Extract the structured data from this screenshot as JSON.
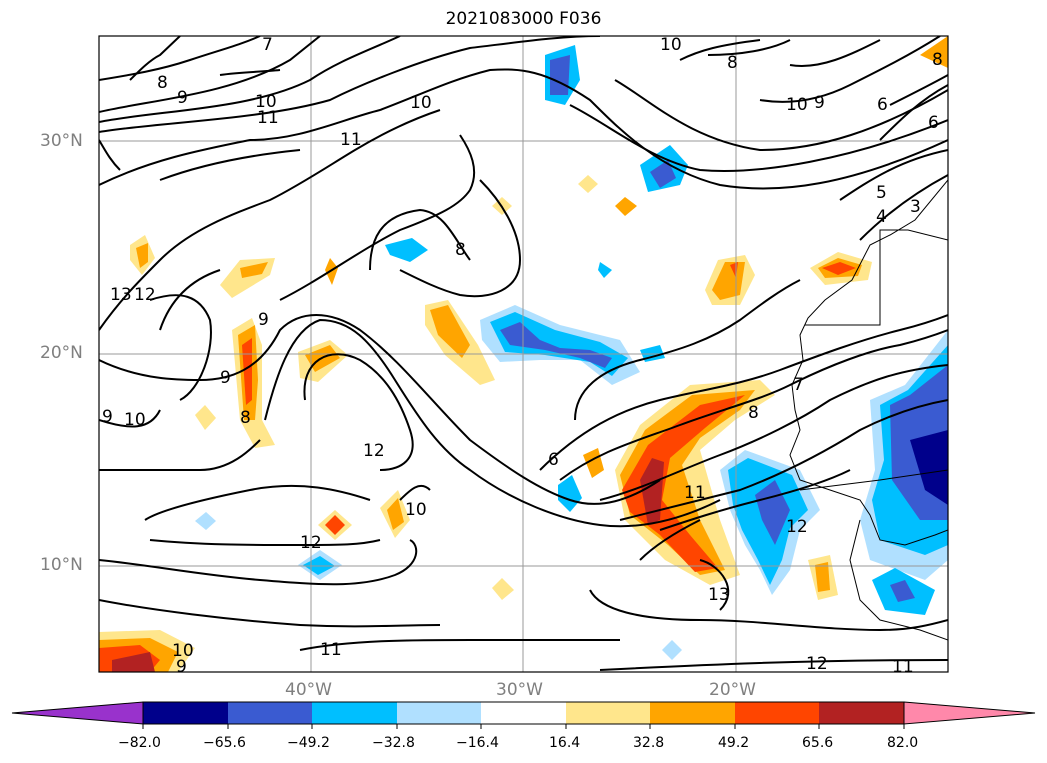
{
  "title": "2021083000 F036",
  "axes": {
    "lat_labels": [
      "30°N",
      "20°N",
      "10°N"
    ],
    "lon_labels": [
      "40°W",
      "30°W",
      "20°W"
    ]
  },
  "contour_labels": [
    "7",
    "8",
    "9",
    "10",
    "11",
    "10",
    "10",
    "11",
    "8",
    "9",
    "10",
    "6",
    "6",
    "5",
    "4",
    "3",
    "13",
    "12",
    "9",
    "8",
    "9",
    "8",
    "10",
    "9",
    "12",
    "6",
    "7",
    "8",
    "11",
    "12",
    "10",
    "12",
    "13",
    "11",
    "10",
    "9",
    "12",
    "11",
    "8"
  ],
  "colorbar": {
    "tick_labels": [
      "−82.0",
      "−65.6",
      "−49.2",
      "−32.8",
      "−16.4",
      "16.4",
      "32.8",
      "49.2",
      "65.6",
      "82.0"
    ],
    "colors": [
      "#9932cc",
      "#00008b",
      "#3a5bd1",
      "#00bfff",
      "#b0e0ff",
      "#ffffff",
      "#ffe68c",
      "#ffa500",
      "#ff4500",
      "#b22222",
      "#ff88aa"
    ]
  }
}
